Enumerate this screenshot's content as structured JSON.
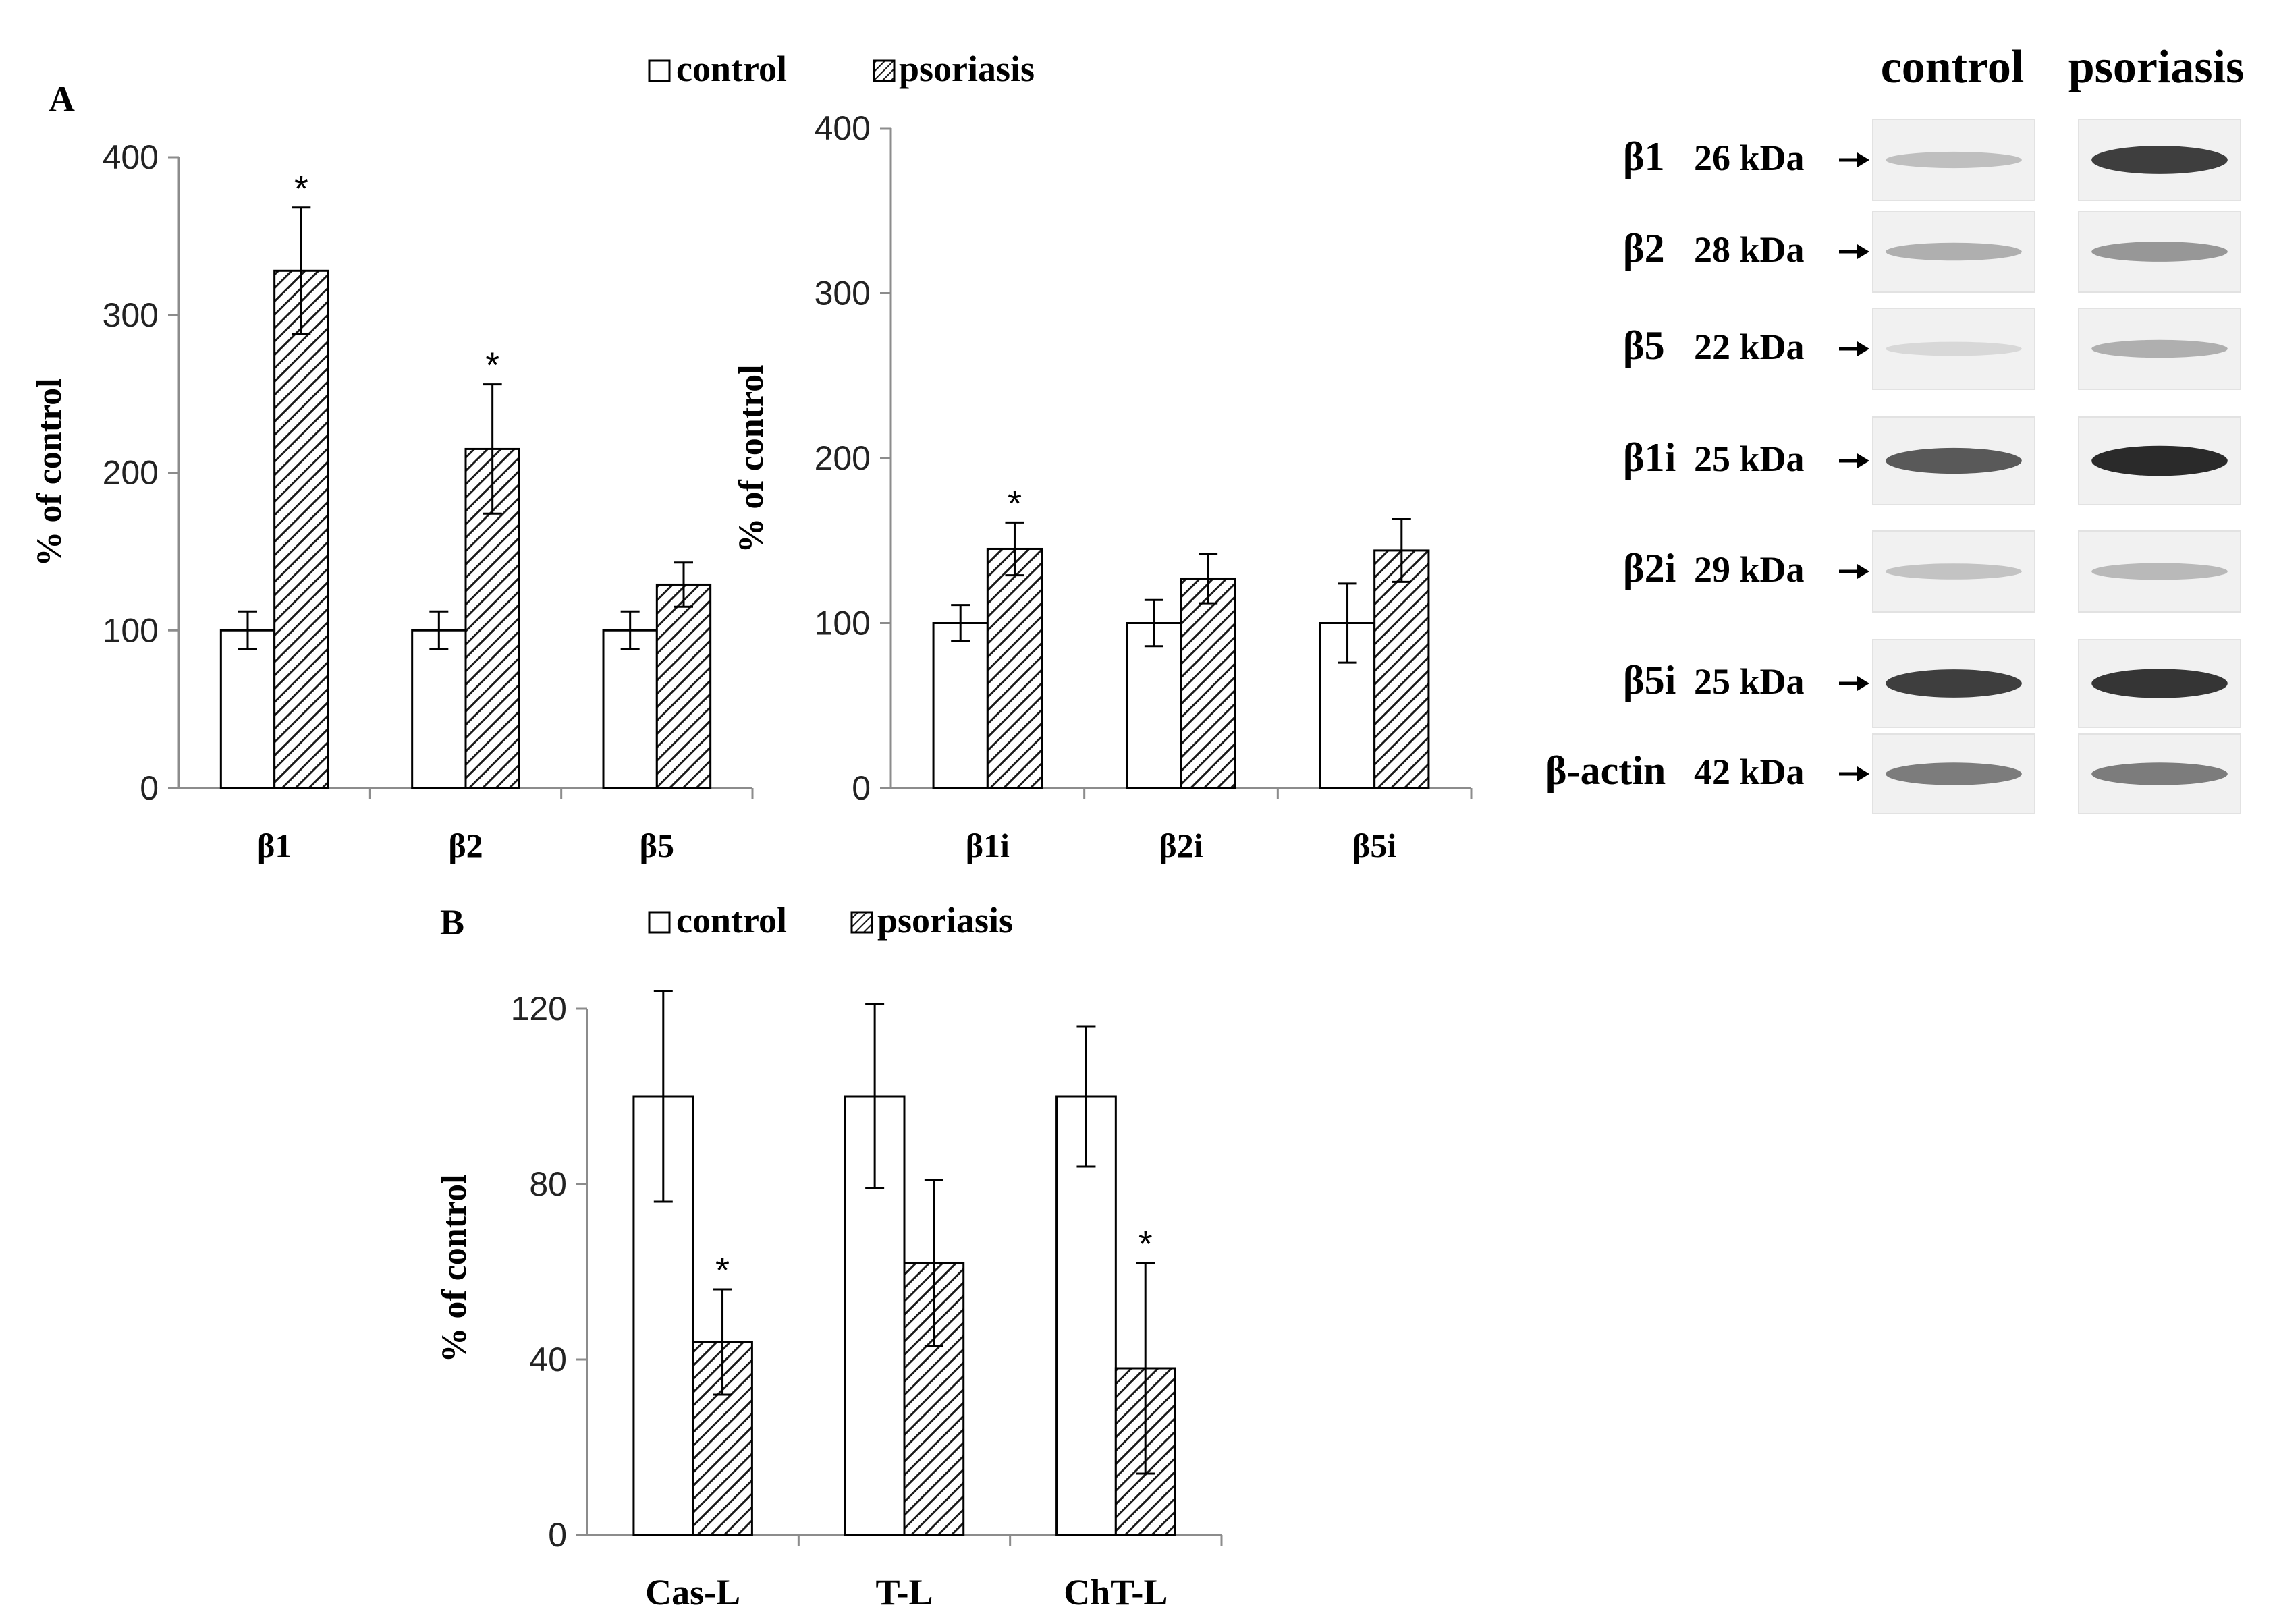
{
  "legend": {
    "control": "control",
    "psoriasis": "psoriasis"
  },
  "colors": {
    "axis": "#8c8c8c",
    "bar_edge": "#000000",
    "bar_fill_control": "#ffffff",
    "hatch": "#1a1a1a",
    "text": "#000000"
  },
  "chart_data": [
    {
      "type": "bar",
      "panel_label": "A",
      "ylabel": "% of control",
      "ylim": [
        0,
        400
      ],
      "yticks": [
        0,
        100,
        200,
        300,
        400
      ],
      "categories": [
        "β1",
        "β2",
        "β5"
      ],
      "series": [
        {
          "name": "control",
          "values": [
            100,
            100,
            100
          ],
          "errors": [
            12,
            12,
            12
          ],
          "sig": [
            false,
            false,
            false
          ]
        },
        {
          "name": "psoriasis",
          "values": [
            328,
            215,
            129
          ],
          "errors": [
            40,
            41,
            14
          ],
          "sig": [
            true,
            true,
            false
          ]
        }
      ]
    },
    {
      "type": "bar",
      "ylabel": "% of control",
      "ylim": [
        0,
        400
      ],
      "yticks": [
        0,
        100,
        200,
        300,
        400
      ],
      "categories": [
        "β1i",
        "β2i",
        "β5i"
      ],
      "series": [
        {
          "name": "control",
          "values": [
            100,
            100,
            100
          ],
          "errors": [
            11,
            14,
            24
          ],
          "sig": [
            false,
            false,
            false
          ]
        },
        {
          "name": "psoriasis",
          "values": [
            145,
            127,
            144
          ],
          "errors": [
            16,
            15,
            19
          ],
          "sig": [
            true,
            false,
            false
          ]
        }
      ]
    },
    {
      "type": "bar",
      "panel_label": "B",
      "ylabel": "% of control",
      "ylim": [
        0,
        120
      ],
      "yticks": [
        0,
        40,
        80,
        120
      ],
      "categories": [
        "Cas-L",
        "T-L",
        "ChT-L"
      ],
      "series": [
        {
          "name": "control",
          "values": [
            100,
            100,
            100
          ],
          "errors": [
            24,
            21,
            16
          ],
          "sig": [
            false,
            false,
            false
          ]
        },
        {
          "name": "psoriasis",
          "values": [
            44,
            62,
            38
          ],
          "errors": [
            12,
            19,
            24
          ],
          "sig": [
            true,
            false,
            true
          ]
        }
      ]
    }
  ],
  "blot": {
    "columns": [
      "control",
      "psoriasis"
    ],
    "rows": [
      {
        "protein": "β1",
        "mw": "26 kDa",
        "control": 0.22,
        "psoriasis": 0.85
      },
      {
        "protein": "β2",
        "mw": "28 kDa",
        "control": 0.3,
        "psoriasis": 0.42
      },
      {
        "protein": "β5",
        "mw": "22 kDa",
        "control": 0.1,
        "psoriasis": 0.3
      },
      {
        "protein": "β1i",
        "mw": "25 kDa",
        "control": 0.72,
        "psoriasis": 0.95
      },
      {
        "protein": "β2i",
        "mw": "29 kDa",
        "control": 0.2,
        "psoriasis": 0.25
      },
      {
        "protein": "β5i",
        "mw": "25 kDa",
        "control": 0.85,
        "psoriasis": 0.9
      },
      {
        "protein": "β-actin",
        "mw": "42 kDa",
        "control": 0.55,
        "psoriasis": 0.55
      }
    ]
  }
}
